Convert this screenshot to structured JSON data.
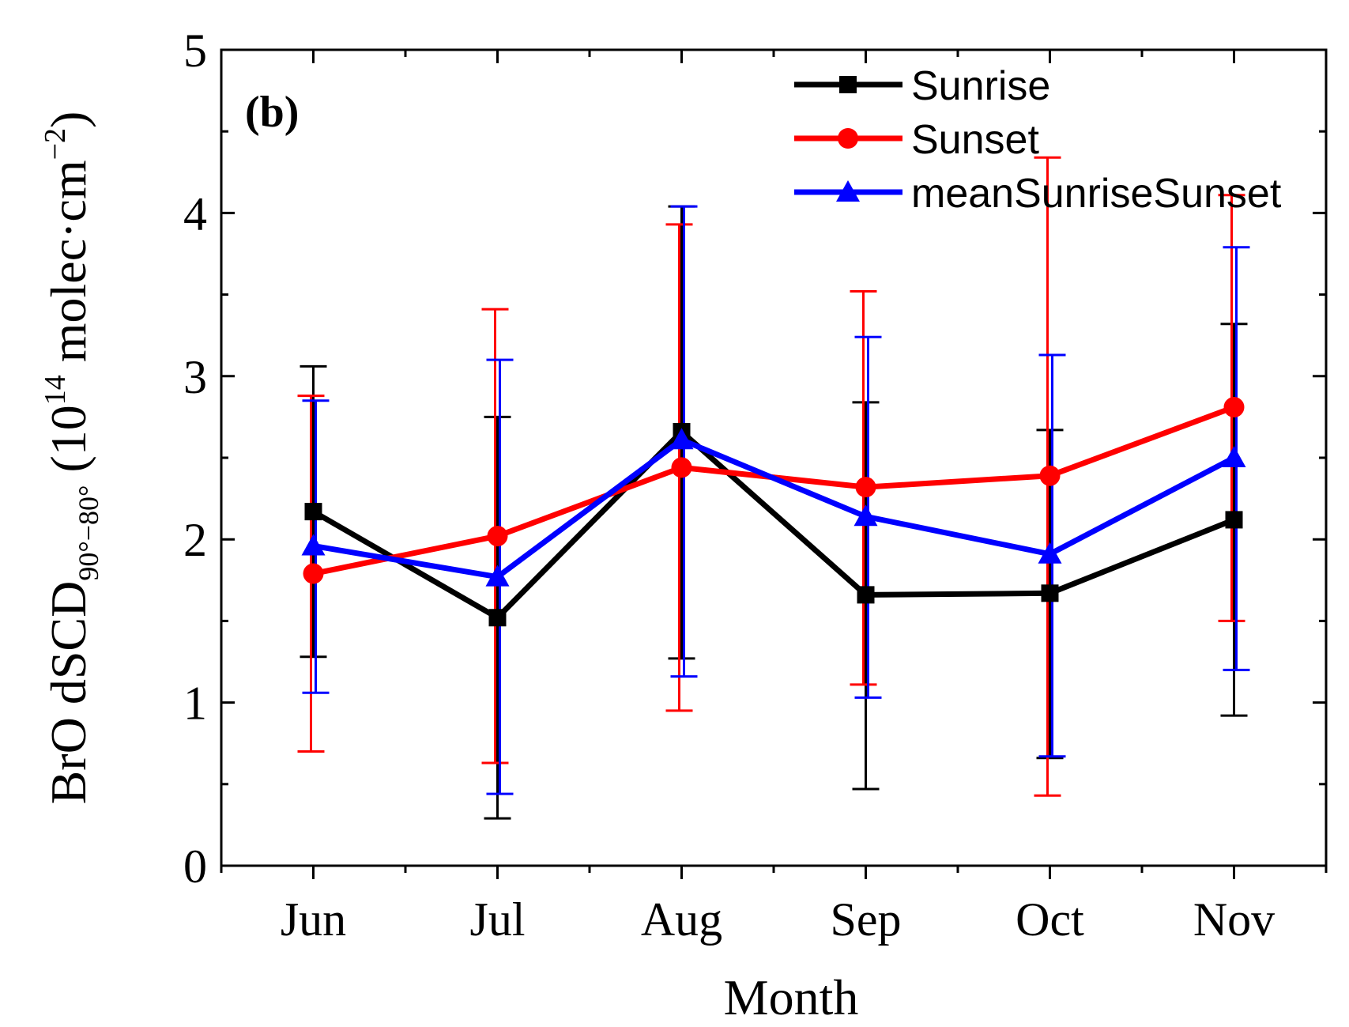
{
  "chart_data": {
    "type": "line",
    "panel_label": "(b)",
    "xlabel": "Month",
    "ylabel": {
      "main": "BrO dSCD",
      "subscript": "90°−80°",
      "unit_open": " (10",
      "unit_exp": "14",
      "unit_mid": " molec·cm",
      "unit_exp2": "−2",
      "unit_close": ")"
    },
    "categories": [
      "Jun",
      "Jul",
      "Aug",
      "Sep",
      "Oct",
      "Nov"
    ],
    "ylim": [
      0,
      5
    ],
    "yticks": [
      "0",
      "1",
      "2",
      "3",
      "4",
      "5"
    ],
    "grid": false,
    "legend_position": "top-right",
    "series": [
      {
        "name": "Sunrise",
        "color": "#000000",
        "marker": "square",
        "values": [
          2.17,
          1.52,
          2.66,
          1.66,
          1.67,
          2.12
        ],
        "err_low": [
          1.28,
          0.29,
          1.27,
          0.47,
          0.66,
          0.92
        ],
        "err_high": [
          3.06,
          2.75,
          4.04,
          2.84,
          2.67,
          3.32
        ]
      },
      {
        "name": "Sunset",
        "color": "#ff0000",
        "marker": "circle",
        "values": [
          1.79,
          2.02,
          2.44,
          2.32,
          2.39,
          2.81
        ],
        "err_low": [
          0.7,
          0.63,
          0.95,
          1.11,
          0.43,
          1.5
        ],
        "err_high": [
          2.88,
          3.41,
          3.93,
          3.52,
          4.34,
          4.11
        ]
      },
      {
        "name": "meanSunriseSunset",
        "color": "#0000ff",
        "marker": "triangle",
        "values": [
          1.96,
          1.77,
          2.61,
          2.14,
          1.91,
          2.5
        ],
        "err_low": [
          1.06,
          0.44,
          1.16,
          1.03,
          0.67,
          1.2
        ],
        "err_high": [
          2.85,
          3.1,
          4.04,
          3.24,
          3.13,
          3.79
        ]
      }
    ]
  }
}
